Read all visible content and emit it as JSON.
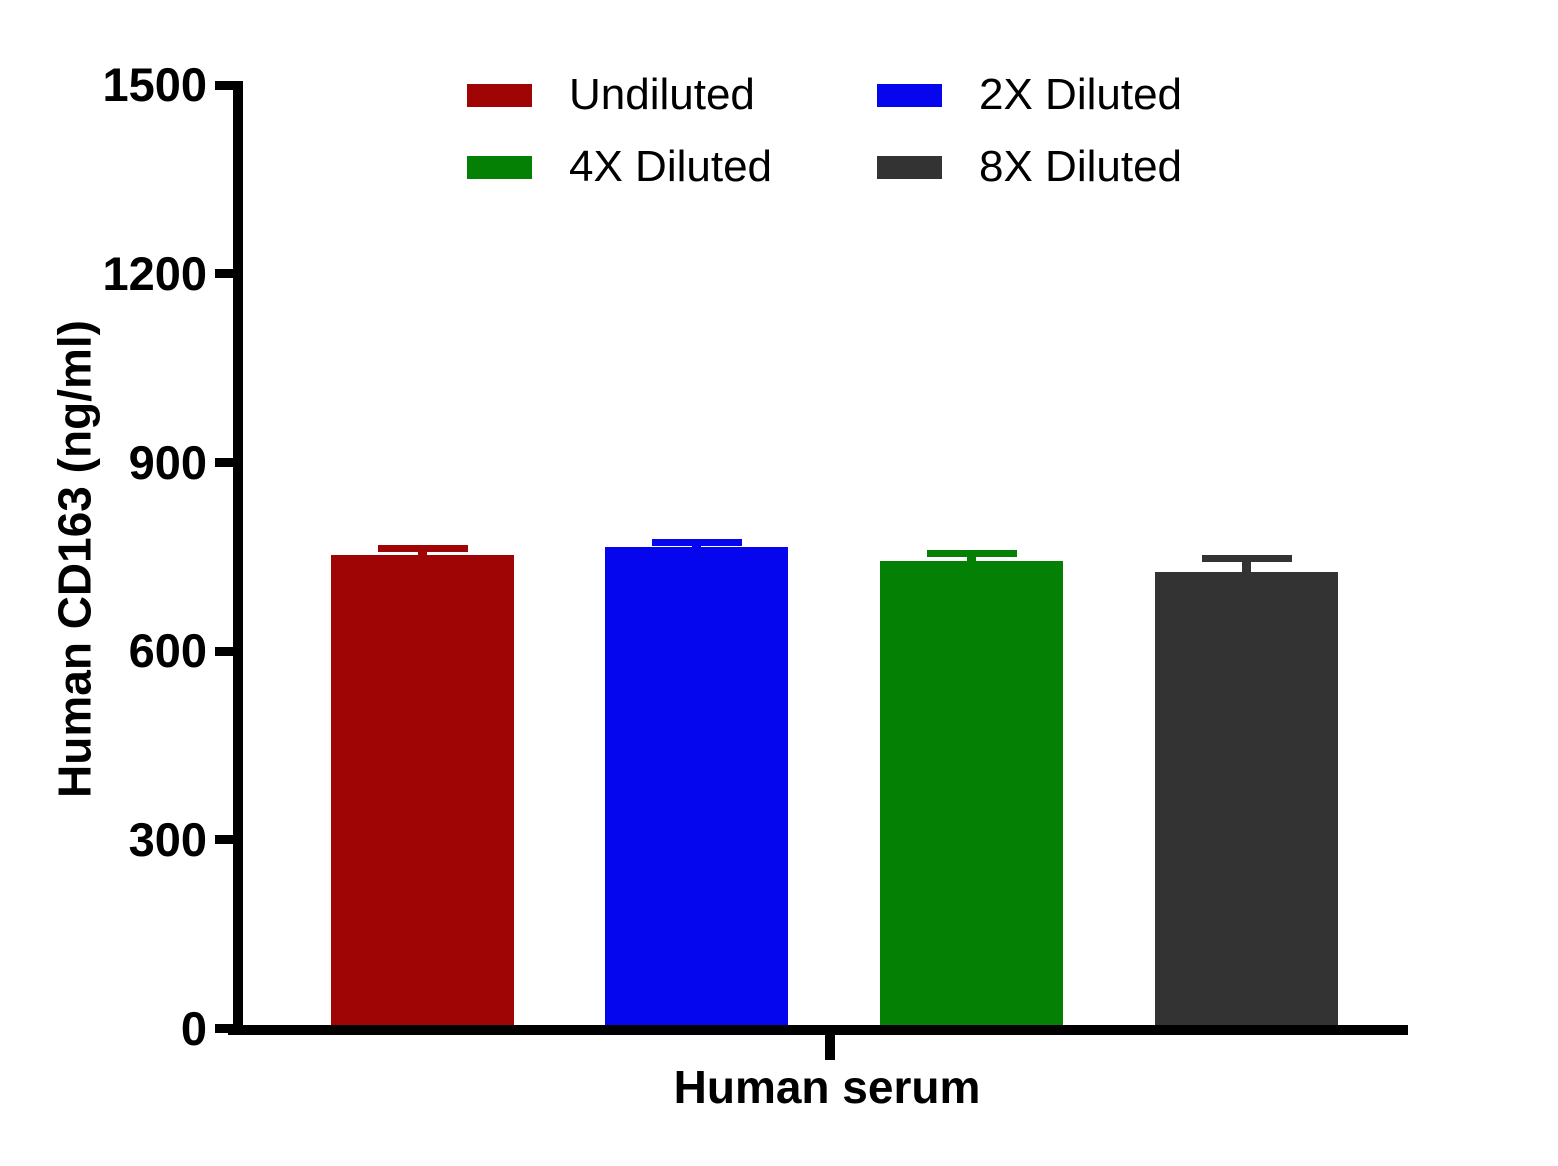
{
  "chart_data": {
    "type": "bar",
    "title": "",
    "xlabel": "Human serum",
    "ylabel": "Human CD163 (ng/ml)",
    "categories": [
      "Human serum"
    ],
    "series": [
      {
        "name": "Undiluted",
        "value": 753,
        "error_plus": 10,
        "color": "#A00505"
      },
      {
        "name": "2X Diluted",
        "value": 766,
        "error_plus": 7,
        "color": "#0505EE"
      },
      {
        "name": "4X Diluted",
        "value": 744,
        "error_plus": 11,
        "color": "#048004"
      },
      {
        "name": "8X Diluted",
        "value": 726,
        "error_plus": 21,
        "color": "#333333"
      }
    ],
    "ylim": [
      0,
      1500
    ],
    "yticks": [
      0,
      300,
      600,
      900,
      1200,
      1500
    ],
    "grid": false,
    "error_bars": "upper only, drawn in same color as bar, with horizontal cap",
    "legend_position": "top center, 2 columns x 2 rows",
    "axis_color": "#000000",
    "background_color": "#FFFFFF"
  }
}
